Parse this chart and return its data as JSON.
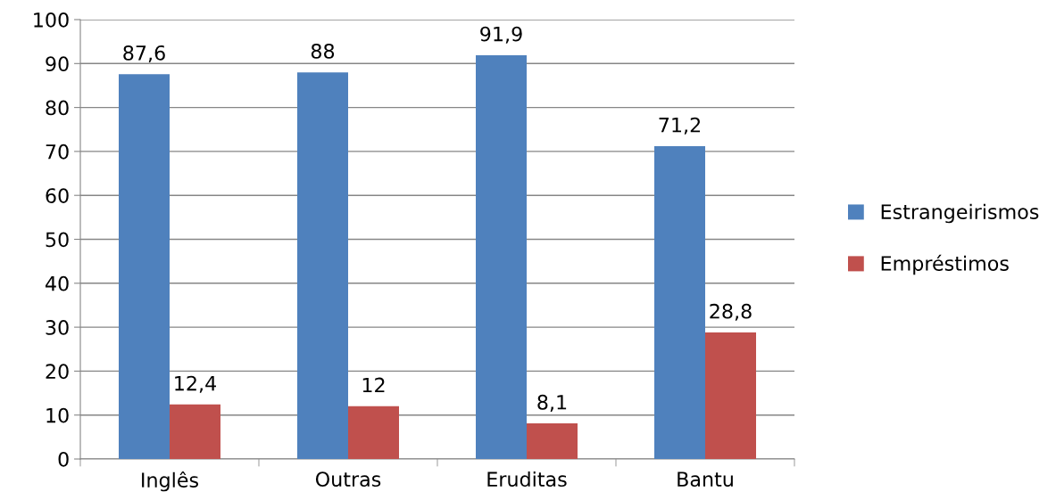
{
  "chart_data": {
    "type": "bar",
    "categories": [
      "Inglês",
      "Outras",
      "Eruditas",
      "Bantu"
    ],
    "series": [
      {
        "name": "Estrangeirismos",
        "color": "#4f81bd",
        "values": [
          87.6,
          88,
          91.9,
          71.2
        ],
        "value_labels": [
          "87,6",
          "88",
          "91,9",
          "71,2"
        ]
      },
      {
        "name": "Empréstimos",
        "color": "#c0504d",
        "values": [
          12.4,
          12,
          8.1,
          28.8
        ],
        "value_labels": [
          "12,4",
          "12",
          "8,1",
          "28,8"
        ]
      }
    ],
    "ylim": [
      0,
      100
    ],
    "yticks": [
      0,
      10,
      20,
      30,
      40,
      50,
      60,
      70,
      80,
      90,
      100
    ],
    "grid": "y",
    "legend": "right"
  }
}
